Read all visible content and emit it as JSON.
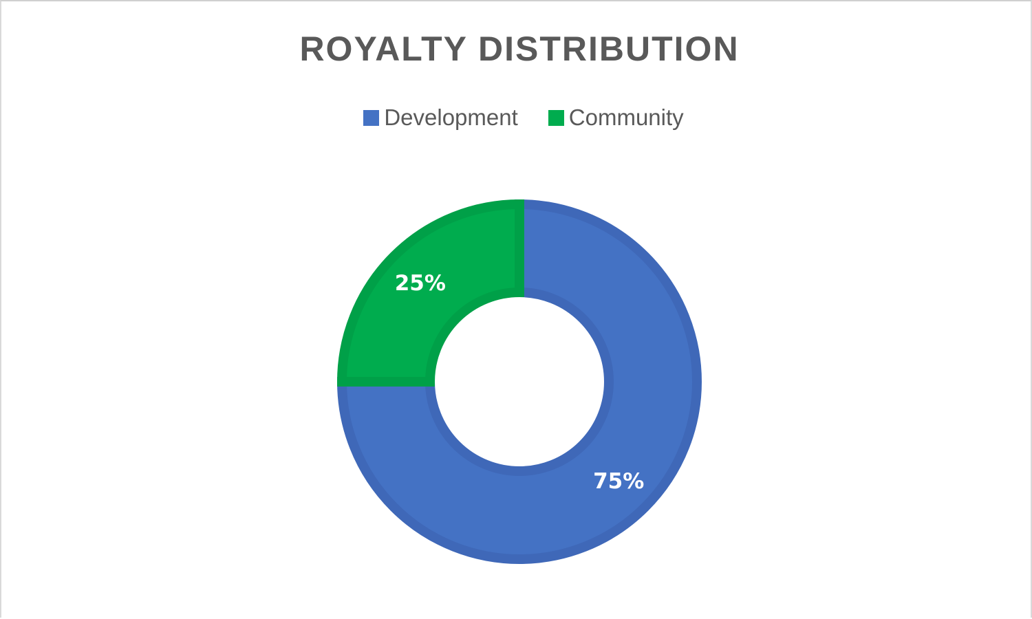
{
  "chart_data": {
    "type": "pie",
    "donut": true,
    "title": "ROYALTY DISTRIBUTION",
    "legend_position": "top",
    "categories": [
      "Development",
      "Community"
    ],
    "values": [
      75,
      25
    ],
    "labels": [
      "75%",
      "25%"
    ],
    "colors": [
      "#4472C4",
      "#00AC4E"
    ],
    "edge_colors": [
      "#3F68B8",
      "#00A048"
    ]
  }
}
